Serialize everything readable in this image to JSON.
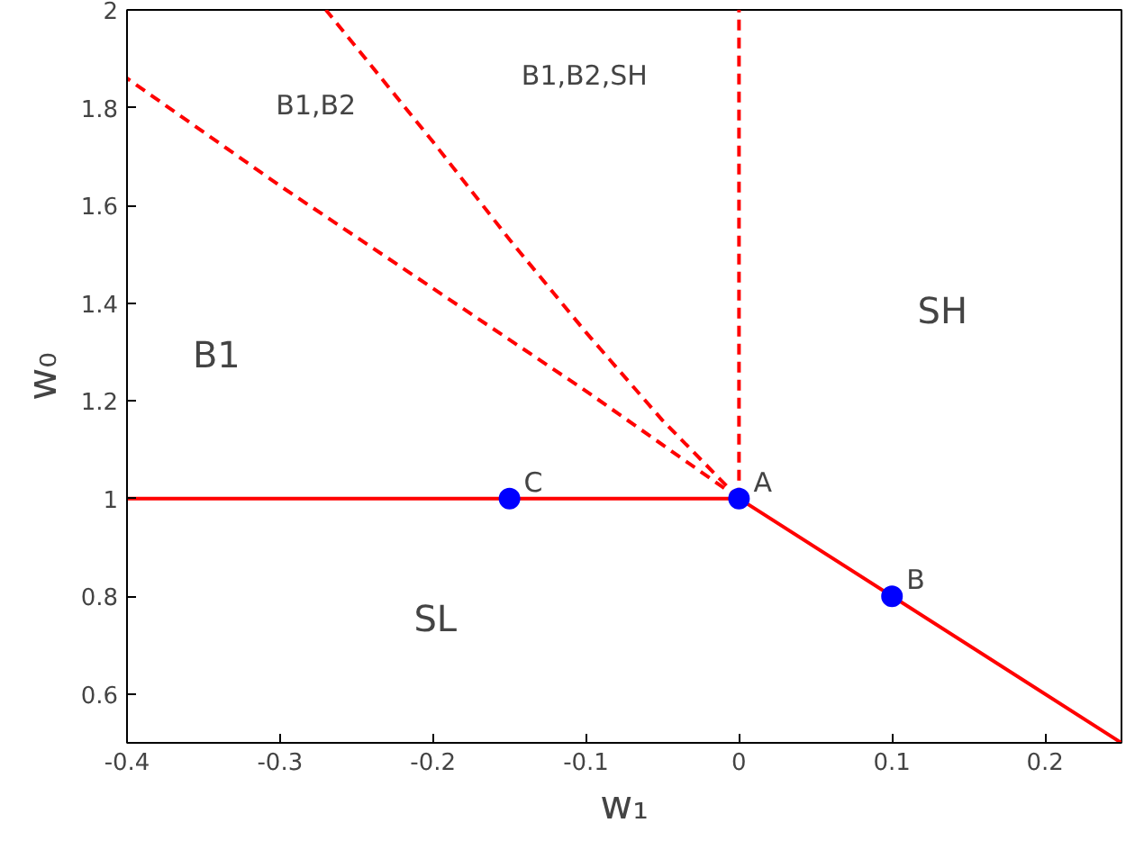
{
  "chart_data": {
    "type": "line",
    "xlabel": "w₁",
    "ylabel": "w₀",
    "xlim": [
      -0.4,
      0.25
    ],
    "ylim": [
      0.5,
      2
    ],
    "xticks": [
      -0.4,
      -0.3,
      -0.2,
      -0.1,
      0,
      0.1,
      0.2
    ],
    "yticks": [
      0.6,
      0.8,
      1,
      1.2,
      1.4,
      1.6,
      1.8,
      2
    ],
    "grid": false,
    "series": [
      {
        "color": "#ff0000",
        "line_style": "solid",
        "x": [
          -0.4,
          0,
          0.25
        ],
        "values": [
          1,
          1,
          0.5
        ]
      },
      {
        "color": "#ff0000",
        "line_style": "dashed",
        "x": [
          0,
          0
        ],
        "values": [
          1,
          2
        ]
      },
      {
        "color": "#ff0000",
        "line_style": "dashed",
        "x": [
          0,
          -0.1,
          -0.2,
          -0.3,
          -0.4
        ],
        "values": [
          1,
          1.22,
          1.43,
          1.64,
          1.86
        ]
      },
      {
        "color": "#ff0000",
        "line_style": "dashed",
        "x": [
          0,
          -0.05,
          -0.1,
          -0.15,
          -0.2,
          -0.27
        ],
        "values": [
          1,
          1.16,
          1.34,
          1.53,
          1.73,
          2
        ]
      },
      {
        "type": "scatter",
        "color": "#0000ff",
        "marker": "circle",
        "x": [
          -0.15,
          0,
          0.1
        ],
        "values": [
          1,
          1,
          0.8
        ]
      }
    ],
    "annotations": [
      {
        "text": "C",
        "x": -0.15,
        "y": 1
      },
      {
        "text": "A",
        "x": 0,
        "y": 1
      },
      {
        "text": "B",
        "x": 0.1,
        "y": 0.8
      },
      "B1,B2",
      "B1,B2,SH",
      "B1",
      "SH",
      "SL"
    ]
  }
}
